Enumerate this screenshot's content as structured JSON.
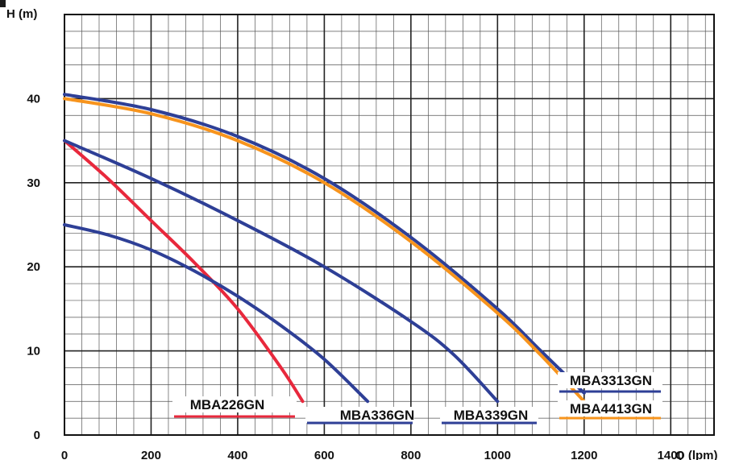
{
  "chart_data": {
    "type": "line",
    "title": "",
    "xlabel": "Q (lpm)",
    "ylabel": "H (m)",
    "xlim": [
      0,
      1500
    ],
    "ylim": [
      0,
      50
    ],
    "x_ticks": [
      "0",
      "200",
      "400",
      "600",
      "800",
      "1000",
      "1200",
      "1400"
    ],
    "y_ticks": [
      "0",
      "10",
      "20",
      "30",
      "40"
    ],
    "grid": true,
    "series": [
      {
        "name": "MBA226GN",
        "color": "#e8283c",
        "x": [
          0,
          100,
          200,
          300,
          400,
          500,
          550
        ],
        "y": [
          35,
          30.5,
          25.5,
          20.5,
          15,
          8,
          4
        ]
      },
      {
        "name": "MBA336GN",
        "color": "#2e3f96",
        "x": [
          0,
          100,
          200,
          300,
          400,
          500,
          600,
          700
        ],
        "y": [
          25,
          23.8,
          22,
          19.5,
          16.5,
          13,
          9,
          4
        ]
      },
      {
        "name": "MBA339GN",
        "color": "#2e3f96",
        "x": [
          0,
          200,
          400,
          600,
          800,
          900,
          1000
        ],
        "y": [
          35,
          30.5,
          25.5,
          20,
          13.5,
          9.5,
          4
        ]
      },
      {
        "name": "MBA3313GN",
        "color": "#2e3f96",
        "x": [
          0,
          200,
          400,
          600,
          800,
          1000,
          1100,
          1200
        ],
        "y": [
          40.5,
          38.7,
          35.5,
          30.5,
          23.5,
          15,
          10,
          5
        ]
      },
      {
        "name": "MBA4413GN",
        "color": "#f7941d",
        "x": [
          0,
          200,
          400,
          600,
          800,
          1000,
          1100,
          1200
        ],
        "y": [
          40,
          38.2,
          35,
          30,
          23,
          14.5,
          9.5,
          4
        ]
      }
    ],
    "legend_placement": "inline-bottom"
  }
}
